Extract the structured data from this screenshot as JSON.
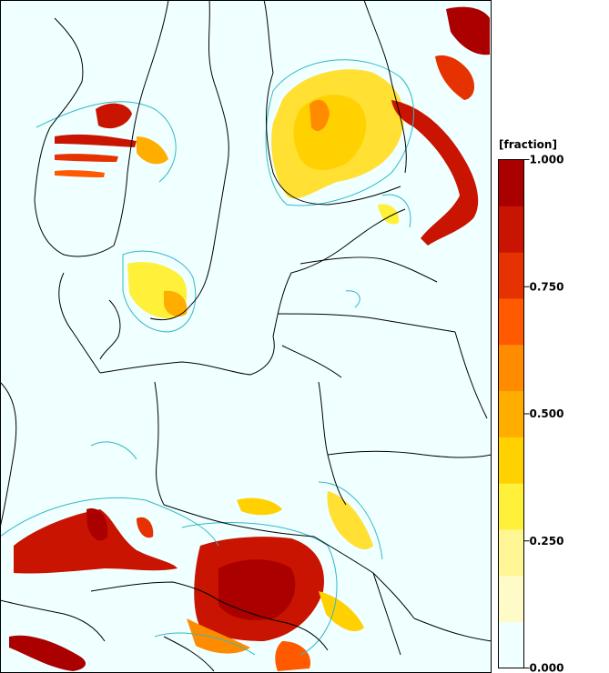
{
  "map": {
    "region": "Baltic Sea and Central/Northern Europe",
    "background_color": "#f0ffff",
    "border_color": "#000000",
    "low_value_contour_color": "#33b8c4"
  },
  "legend": {
    "title": "[fraction]",
    "colors": [
      "#f0ffff",
      "#fffbc8",
      "#fff796",
      "#fff03a",
      "#ffd100",
      "#ffae00",
      "#ff8c00",
      "#ff5a00",
      "#e63200",
      "#c81400",
      "#aa0000"
    ],
    "tick_labels": [
      {
        "label": "1.000",
        "value": 1.0
      },
      {
        "label": "0.750",
        "value": 0.75
      },
      {
        "label": "0.500",
        "value": 0.5
      },
      {
        "label": "0.250",
        "value": 0.25
      },
      {
        "label": "0.000",
        "value": 0.0
      }
    ]
  }
}
